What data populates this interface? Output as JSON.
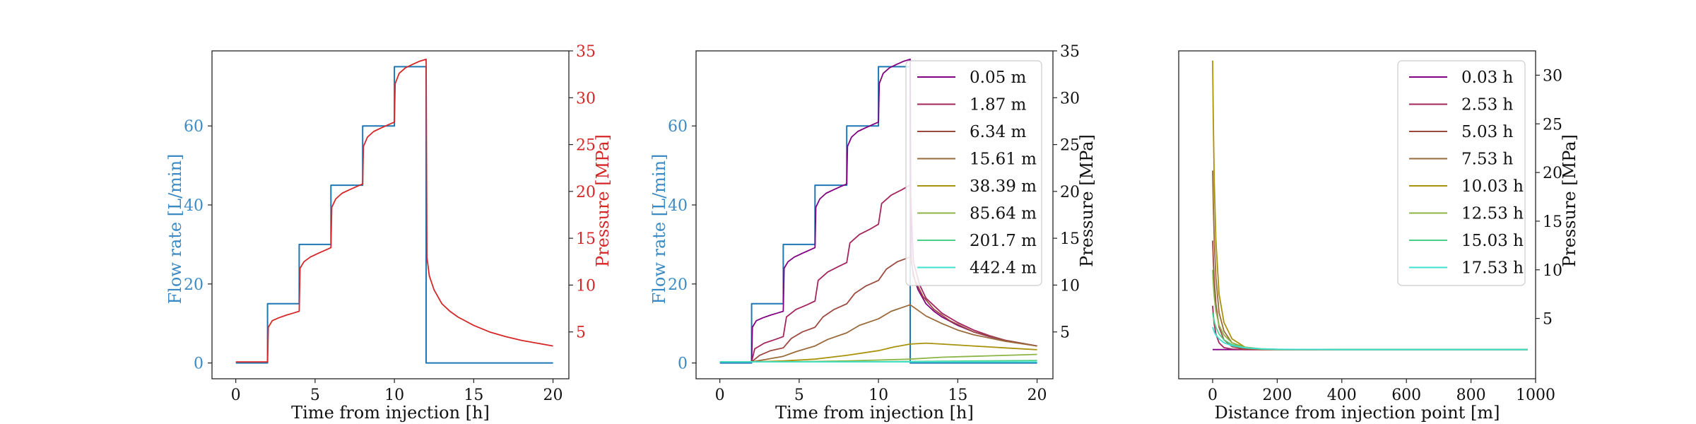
{
  "colors": {
    "flow": "#1f77b4",
    "flow_label": "#3b8ac4",
    "pressure": "#d62728",
    "axis": "#222222"
  },
  "chart_data": [
    {
      "type": "line",
      "title": "",
      "xlabel": "Time from injection [h]",
      "ylabel_left": "Flow rate [L/min]",
      "ylabel_right": "Pressure [MPa]",
      "xlim": [
        -1.5,
        21
      ],
      "ylim_left": [
        -4,
        79
      ],
      "ylim_right": [
        0,
        35
      ],
      "xticks": [
        0,
        5,
        10,
        15,
        20
      ],
      "yticks_left": [
        0,
        20,
        40,
        60
      ],
      "yticks_right": [
        5,
        10,
        15,
        20,
        25,
        30,
        35
      ],
      "series": [
        {
          "axis": "left",
          "color": "#1f77b4",
          "x": [
            0,
            2,
            2,
            4,
            4,
            6,
            6,
            8,
            8,
            10,
            10,
            12,
            12,
            20
          ],
          "y": [
            0,
            0,
            15,
            15,
            30,
            30,
            45,
            45,
            60,
            60,
            75,
            75,
            0,
            0
          ]
        },
        {
          "axis": "right",
          "color": "#d62728",
          "x": [
            0,
            2,
            2.05,
            2.3,
            2.7,
            3.2,
            3.6,
            4,
            4.05,
            4.3,
            4.7,
            5.2,
            5.6,
            6,
            6.05,
            6.3,
            6.7,
            7.2,
            7.6,
            8,
            8.05,
            8.3,
            8.7,
            9.2,
            9.6,
            10,
            10.05,
            10.3,
            10.7,
            11.2,
            11.6,
            12,
            12.05,
            12.2,
            12.5,
            13,
            13.5,
            14,
            15,
            16,
            17,
            18,
            19,
            20
          ],
          "y": [
            1.8,
            1.8,
            5.5,
            6.2,
            6.5,
            6.8,
            7.0,
            7.2,
            11.8,
            12.5,
            13.0,
            13.4,
            13.7,
            14.0,
            18.3,
            19.2,
            19.8,
            20.2,
            20.5,
            20.8,
            24.8,
            25.8,
            26.4,
            26.8,
            27.1,
            27.4,
            31.5,
            32.6,
            33.2,
            33.6,
            33.9,
            34.1,
            13.0,
            11.0,
            9.5,
            8.0,
            7.2,
            6.6,
            5.7,
            5.0,
            4.5,
            4.1,
            3.8,
            3.5
          ]
        }
      ]
    },
    {
      "type": "line",
      "title": "",
      "xlabel": "Time from injection [h]",
      "ylabel_left": "Flow rate [L/min]",
      "ylabel_right": "Pressure [MPa]",
      "xlim": [
        -1.5,
        21
      ],
      "ylim_left": [
        -4,
        79
      ],
      "ylim_right": [
        0,
        35
      ],
      "xticks": [
        0,
        5,
        10,
        15,
        20
      ],
      "yticks_left": [
        0,
        20,
        40,
        60
      ],
      "yticks_right": [
        5,
        10,
        15,
        20,
        25,
        30,
        35
      ],
      "legend_position": "top-right",
      "series": [
        {
          "axis": "left",
          "color": "#1f77b4",
          "x": [
            0,
            2,
            2,
            4,
            4,
            6,
            6,
            8,
            8,
            10,
            10,
            12,
            12,
            20
          ],
          "y": [
            0,
            0,
            15,
            15,
            30,
            30,
            45,
            45,
            60,
            60,
            75,
            75,
            0,
            0
          ]
        },
        {
          "name": "0.05 m",
          "axis": "right",
          "color": "#800080",
          "x": [
            0,
            2,
            2.05,
            2.3,
            2.7,
            3.2,
            3.6,
            4,
            4.05,
            4.3,
            4.7,
            5.2,
            5.6,
            6,
            6.05,
            6.3,
            6.7,
            7.2,
            7.6,
            8,
            8.05,
            8.3,
            8.7,
            9.2,
            9.6,
            10,
            10.05,
            10.3,
            10.7,
            11.2,
            11.6,
            12,
            12.05,
            12.2,
            12.5,
            13,
            13.5,
            14,
            15,
            16,
            17,
            18,
            19,
            20
          ],
          "y": [
            1.8,
            1.8,
            5.5,
            6.2,
            6.5,
            6.8,
            7.0,
            7.2,
            11.8,
            12.5,
            13.0,
            13.4,
            13.7,
            14.0,
            18.3,
            19.2,
            19.8,
            20.2,
            20.5,
            20.8,
            24.8,
            25.8,
            26.4,
            26.8,
            27.1,
            27.4,
            31.5,
            32.6,
            33.2,
            33.6,
            33.9,
            34.1,
            13.0,
            11.0,
            9.5,
            8.0,
            7.2,
            6.6,
            5.7,
            5.0,
            4.5,
            4.1,
            3.8,
            3.5
          ]
        },
        {
          "name": "1.87 m",
          "axis": "right",
          "color": "#a3255e",
          "x": [
            0,
            2,
            2.2,
            2.8,
            3.5,
            4,
            4.2,
            4.8,
            5.5,
            6,
            6.2,
            6.8,
            7.5,
            8,
            8.2,
            8.8,
            9.5,
            10,
            10.2,
            10.8,
            11.5,
            12,
            12.2,
            12.6,
            13,
            14,
            15,
            16,
            17,
            18,
            19,
            20
          ],
          "y": [
            1.8,
            1.8,
            3.2,
            3.8,
            4.2,
            4.5,
            6.6,
            7.4,
            7.9,
            8.3,
            10.5,
            11.4,
            12.0,
            12.4,
            14.5,
            15.4,
            16.0,
            16.5,
            18.7,
            19.6,
            20.2,
            20.7,
            12.5,
            10.0,
            8.6,
            7.0,
            6.0,
            5.2,
            4.6,
            4.1,
            3.8,
            3.5
          ]
        },
        {
          "name": "6.34 m",
          "axis": "right",
          "color": "#9c4a3f",
          "x": [
            0,
            2,
            2.5,
            3.2,
            4,
            4.5,
            5.2,
            6,
            6.5,
            7.2,
            8,
            8.5,
            9.2,
            10,
            10.5,
            11.2,
            12,
            12.3,
            12.8,
            13.5,
            14.5,
            16,
            18,
            20
          ],
          "y": [
            1.8,
            1.8,
            2.5,
            3.0,
            3.3,
            4.3,
            5.0,
            5.5,
            6.6,
            7.4,
            8.0,
            9.1,
            9.9,
            10.5,
            11.7,
            12.5,
            13.0,
            10.5,
            8.8,
            7.4,
            6.2,
            5.0,
            4.1,
            3.5
          ]
        },
        {
          "name": "15.61 m",
          "axis": "right",
          "color": "#9a6b3a",
          "x": [
            0,
            2,
            3,
            4,
            4.8,
            6,
            6.8,
            8,
            8.8,
            10,
            10.8,
            12,
            12.5,
            13,
            14,
            15,
            16,
            18,
            20
          ],
          "y": [
            1.8,
            1.8,
            2.1,
            2.4,
            2.9,
            3.5,
            4.2,
            4.9,
            5.7,
            6.4,
            7.2,
            7.9,
            7.3,
            6.7,
            5.9,
            5.2,
            4.7,
            4.0,
            3.5
          ]
        },
        {
          "name": "38.39 m",
          "axis": "right",
          "color": "#a8920a",
          "x": [
            0,
            2,
            4,
            6,
            8,
            10,
            11,
            12,
            13,
            14,
            16,
            18,
            20
          ],
          "y": [
            1.8,
            1.8,
            1.9,
            2.1,
            2.5,
            3.0,
            3.4,
            3.7,
            3.8,
            3.7,
            3.5,
            3.3,
            3.1
          ]
        },
        {
          "name": "85.64 m",
          "axis": "right",
          "color": "#8cb447",
          "x": [
            0,
            4,
            8,
            10,
            12,
            14,
            16,
            18,
            20
          ],
          "y": [
            1.8,
            1.8,
            1.9,
            2.0,
            2.1,
            2.3,
            2.4,
            2.5,
            2.6
          ]
        },
        {
          "name": "201.7 m",
          "axis": "right",
          "color": "#4fd08a",
          "x": [
            0,
            8,
            12,
            16,
            20
          ],
          "y": [
            1.8,
            1.8,
            1.85,
            1.9,
            1.95
          ]
        },
        {
          "name": "442.4 m",
          "axis": "right",
          "color": "#40e0d0",
          "x": [
            0,
            20
          ],
          "y": [
            1.8,
            1.8
          ]
        }
      ]
    },
    {
      "type": "line",
      "title": "",
      "xlabel": "Distance from injection point [m]",
      "ylabel_right": "Pressure [MPa]",
      "xlim": [
        -105,
        1000
      ],
      "ylim_right": [
        -1.2,
        32.5
      ],
      "xticks": [
        0,
        200,
        400,
        600,
        800,
        1000
      ],
      "yticks_right": [
        5,
        10,
        15,
        20,
        25,
        30
      ],
      "legend_position": "top-right",
      "series": [
        {
          "name": "0.03 h",
          "color": "#800080",
          "x": [
            0,
            2,
            5,
            10,
            20,
            35,
            60,
            100,
            150,
            200,
            400,
            600,
            800,
            975
          ],
          "y": [
            1.8,
            1.8,
            1.8,
            1.8,
            1.8,
            1.8,
            1.8,
            1.8,
            1.8,
            1.8,
            1.8,
            1.8,
            1.8,
            1.8
          ]
        },
        {
          "name": "2.53 h",
          "color": "#a3255e",
          "x": [
            0,
            2,
            5,
            10,
            20,
            35,
            60,
            100,
            150,
            200,
            400,
            600,
            800,
            975
          ],
          "y": [
            6.3,
            5.4,
            4.4,
            3.4,
            2.5,
            2.0,
            1.85,
            1.8,
            1.8,
            1.8,
            1.8,
            1.8,
            1.8,
            1.8
          ]
        },
        {
          "name": "5.03 h",
          "color": "#9c4a3f",
          "x": [
            0,
            2,
            5,
            10,
            20,
            35,
            60,
            100,
            150,
            200,
            400,
            600,
            800,
            975
          ],
          "y": [
            13.0,
            11.0,
            8.8,
            6.5,
            4.1,
            2.8,
            2.1,
            1.85,
            1.8,
            1.8,
            1.8,
            1.8,
            1.8,
            1.8
          ]
        },
        {
          "name": "7.53 h",
          "color": "#9a6b3a",
          "x": [
            0,
            2,
            5,
            10,
            20,
            35,
            60,
            100,
            150,
            200,
            400,
            600,
            800,
            975
          ],
          "y": [
            20.2,
            16.8,
            13.0,
            9.2,
            5.6,
            3.7,
            2.5,
            1.95,
            1.82,
            1.8,
            1.8,
            1.8,
            1.8,
            1.8
          ]
        },
        {
          "name": "10.03 h",
          "color": "#a8920a",
          "x": [
            0,
            2,
            5,
            10,
            20,
            35,
            60,
            100,
            150,
            200,
            400,
            600,
            800,
            975
          ],
          "y": [
            31.5,
            25.5,
            19.0,
            13.0,
            7.5,
            4.6,
            2.9,
            2.05,
            1.85,
            1.8,
            1.8,
            1.8,
            1.8,
            1.8
          ]
        },
        {
          "name": "12.53 h",
          "color": "#8cb447",
          "x": [
            0,
            2,
            5,
            10,
            20,
            35,
            60,
            100,
            150,
            200,
            400,
            600,
            800,
            975
          ],
          "y": [
            10.0,
            8.6,
            7.2,
            5.8,
            4.3,
            3.3,
            2.5,
            2.05,
            1.88,
            1.82,
            1.8,
            1.8,
            1.8,
            1.8
          ]
        },
        {
          "name": "15.03 h",
          "color": "#4fd08a",
          "x": [
            0,
            2,
            5,
            10,
            20,
            35,
            60,
            100,
            150,
            200,
            400,
            600,
            800,
            975
          ],
          "y": [
            5.6,
            5.2,
            4.7,
            4.1,
            3.4,
            2.8,
            2.3,
            2.0,
            1.88,
            1.83,
            1.8,
            1.8,
            1.8,
            1.8
          ]
        },
        {
          "name": "17.53 h",
          "color": "#40e0d0",
          "x": [
            0,
            2,
            5,
            10,
            20,
            35,
            60,
            100,
            150,
            200,
            400,
            600,
            800,
            975
          ],
          "y": [
            4.1,
            3.9,
            3.6,
            3.3,
            2.9,
            2.5,
            2.2,
            1.98,
            1.87,
            1.83,
            1.8,
            1.8,
            1.8,
            1.8
          ]
        }
      ]
    }
  ]
}
